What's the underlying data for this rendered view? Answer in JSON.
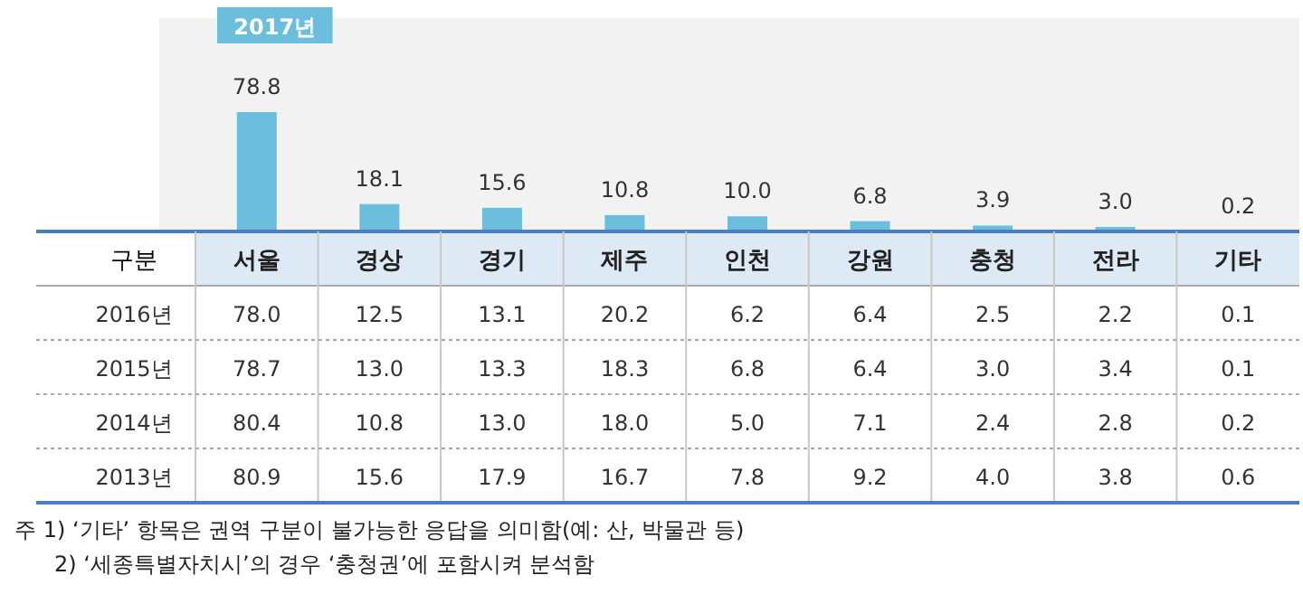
{
  "chart_data": [
    {
      "type": "bar",
      "categories": [
        "서울",
        "경상",
        "경기",
        "제주",
        "인천",
        "강원",
        "충청",
        "전라",
        "기타"
      ],
      "data_labels": true,
      "series": [
        {
          "name": "2017년",
          "color": "#6bbfdc",
          "values": [
            78.8,
            18.1,
            15.6,
            10.8,
            10.0,
            6.8,
            3.9,
            3.0,
            0.2
          ],
          "value_labels": [
            "78.8",
            "18.1",
            "15.6",
            "10.8",
            "10.0",
            "6.8",
            "3.9",
            "3.0",
            "0.2"
          ]
        }
      ]
    },
    {
      "type": "heatmap",
      "xlabel": "구분",
      "categories": [
        null,
        null,
        null,
        null,
        null,
        null,
        null,
        null,
        null
      ],
      "y_categories": [
        "2016년",
        "2015년",
        "2014년",
        "2013년"
      ],
      "cells": [
        [
          78.0,
          12.5,
          13.1,
          20.2,
          6.2,
          6.4,
          2.5,
          2.2,
          0.1
        ],
        [
          78.7,
          13.0,
          13.3,
          18.3,
          6.8,
          6.4,
          3.0,
          3.4,
          0.1
        ],
        [
          80.4,
          10.8,
          13.0,
          18.0,
          5.0,
          7.1,
          2.4,
          2.8,
          0.2
        ],
        [
          80.9,
          15.6,
          17.9,
          16.7,
          7.8,
          9.2,
          4.0,
          3.8,
          0.6
        ]
      ],
      "cell_labels": [
        [
          "78.0",
          "12.5",
          "13.1",
          "20.2",
          "6.2",
          "6.4",
          "2.5",
          "2.2",
          "0.1"
        ],
        [
          "78.7",
          "13.0",
          "13.3",
          "18.3",
          "6.8",
          "6.4",
          "3.0",
          "3.4",
          "0.1"
        ],
        [
          "80.4",
          "10.8",
          "13.0",
          "18.0",
          "5.0",
          "7.1",
          "2.4",
          "2.8",
          "0.2"
        ],
        [
          "80.9",
          "15.6",
          "17.9",
          "16.7",
          "7.8",
          "9.2",
          "4.0",
          "3.8",
          "0.6"
        ]
      ],
      "annotations": [
        "주 1) ‘기타’ 항목은 권역 구분이 불가능한 응답을 의미함(예: 산, 박물관 등)",
        "2) ‘세종특별자치시’의 경우 ‘충청권’에 포함시켜 분석함"
      ]
    }
  ]
}
